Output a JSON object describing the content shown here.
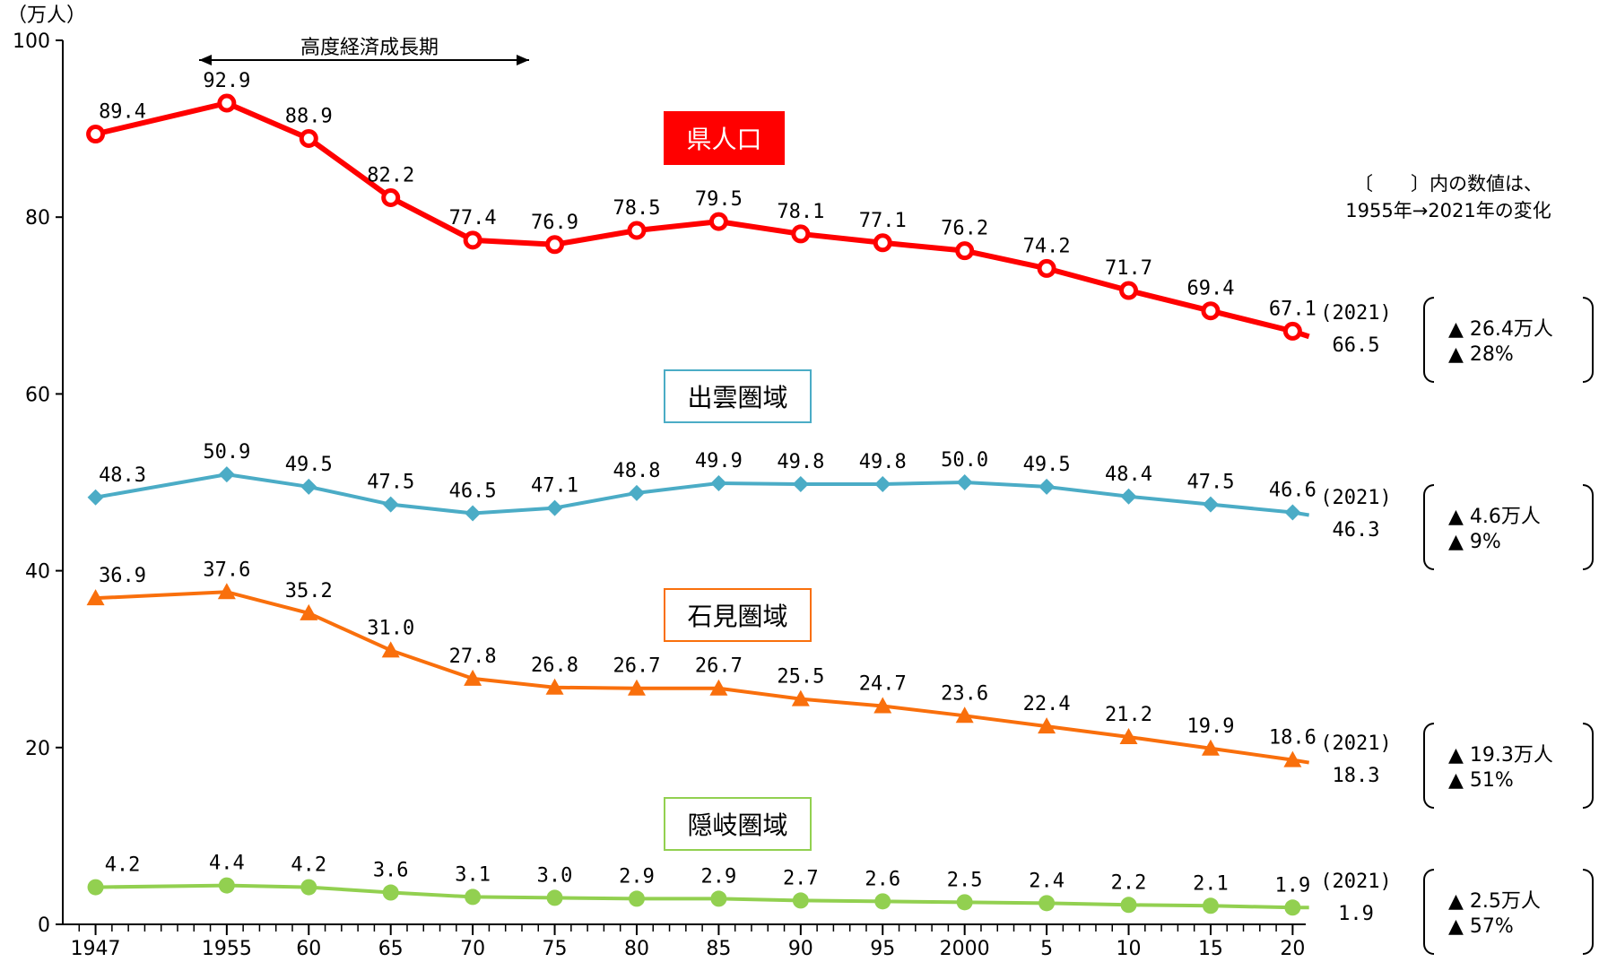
{
  "chart_data": {
    "type": "line",
    "unit_label": "（万人）",
    "y_ticks": [
      "0",
      "20",
      "40",
      "60",
      "80",
      "100"
    ],
    "ylim": [
      0,
      100
    ],
    "x_tick_labels": [
      "1947",
      "1955",
      "60",
      "65",
      "70",
      "75",
      "80",
      "85",
      "90",
      "95",
      "2000",
      "5",
      "10",
      "15",
      "20"
    ],
    "x_years": [
      1947,
      1955,
      1960,
      1965,
      1970,
      1975,
      1980,
      1985,
      1990,
      1995,
      2000,
      2005,
      2010,
      2015,
      2020
    ],
    "series": [
      {
        "name": "県人口",
        "color": "#ff0000",
        "marker": "circle",
        "values": [
          89.4,
          92.9,
          88.9,
          82.2,
          77.4,
          76.9,
          78.5,
          79.5,
          78.1,
          77.1,
          76.2,
          74.2,
          71.7,
          69.4,
          67.1
        ],
        "labels": [
          "89.4",
          "92.9",
          "88.9",
          "82.2",
          "77.4",
          "76.9",
          "78.5",
          "79.5",
          "78.1",
          "77.1",
          "76.2",
          "74.2",
          "71.7",
          "69.4",
          "67.1"
        ],
        "end_value": 66.5
      },
      {
        "name": "出雲圏域",
        "color": "#4bacc6",
        "marker": "diamond",
        "values": [
          48.3,
          50.9,
          49.5,
          47.5,
          46.5,
          47.1,
          48.8,
          49.9,
          49.8,
          49.8,
          50.0,
          49.5,
          48.4,
          47.5,
          46.6
        ],
        "labels": [
          "48.3",
          "50.9",
          "49.5",
          "47.5",
          "46.5",
          "47.1",
          "48.8",
          "49.9",
          "49.8",
          "49.8",
          "50.0",
          "49.5",
          "48.4",
          "47.5",
          "46.6"
        ],
        "end_value": 46.3
      },
      {
        "name": "石見圏域",
        "color": "#f96f0c",
        "marker": "triangle",
        "values": [
          36.9,
          37.6,
          35.2,
          31.0,
          27.8,
          26.8,
          26.7,
          26.7,
          25.5,
          24.7,
          23.6,
          22.4,
          21.2,
          19.9,
          18.6
        ],
        "labels": [
          "36.9",
          "37.6",
          "35.2",
          "31.0",
          "27.8",
          "26.8",
          "26.7",
          "26.7",
          "25.5",
          "24.7",
          "23.6",
          "22.4",
          "21.2",
          "19.9",
          "18.6"
        ],
        "end_value": 18.3
      },
      {
        "name": "隠岐圏域",
        "color": "#92d050",
        "marker": "circle",
        "values": [
          4.2,
          4.4,
          4.2,
          3.6,
          3.1,
          3.0,
          2.9,
          2.9,
          2.7,
          2.6,
          2.5,
          2.4,
          2.2,
          2.1,
          1.9
        ],
        "labels": [
          "4.2",
          "4.4",
          "4.2",
          "3.6",
          "3.1",
          "3.0",
          "2.9",
          "2.9",
          "2.7",
          "2.6",
          "2.5",
          "2.4",
          "2.2",
          "2.1",
          "1.9"
        ],
        "end_value": 1.9
      }
    ],
    "annotation": "高度経済成長期"
  },
  "regions": {
    "ken": "県人口",
    "izumo": "出雲圏域",
    "iwami": "石見圏域",
    "oki": "隠岐圏域"
  },
  "note": {
    "line1": "〔　　〕内の数値は、",
    "line2": "1955年→2021年の変化"
  },
  "end_labels": {
    "ken": {
      "year": "(2021)",
      "value": "66.5",
      "change_abs": "▲ 26.4万人",
      "change_pct": "▲ 28%"
    },
    "izumo": {
      "year": "(2021)",
      "value": "46.3",
      "change_abs": "▲ 4.6万人",
      "change_pct": "▲ 9%"
    },
    "iwami": {
      "year": "(2021)",
      "value": "18.3",
      "change_abs": "▲ 19.3万人",
      "change_pct": "▲ 51%"
    },
    "oki": {
      "year": "(2021)",
      "value": "1.9",
      "change_abs": "▲ 2.5万人",
      "change_pct": "▲ 57%"
    }
  }
}
